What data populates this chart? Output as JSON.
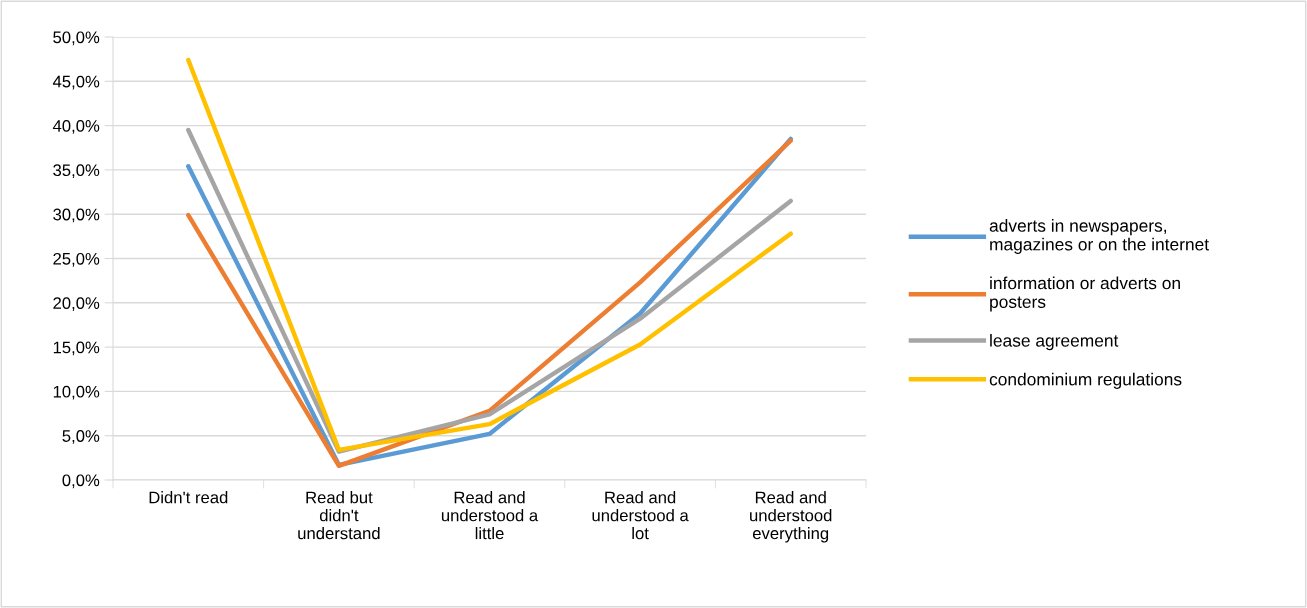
{
  "chart_data": {
    "type": "line",
    "categories": [
      "Didn't read",
      "Read but\ndidn't\nunderstand",
      "Read and\nunderstood a\nlittle",
      "Read and\nunderstood a\nlot",
      "Read and\nunderstood\neverything"
    ],
    "series": [
      {
        "name": "adverts in newspapers,\nmagazines or on the internet",
        "color": "#5b9bd5",
        "values": [
          35.4,
          1.7,
          5.2,
          18.8,
          38.5
        ]
      },
      {
        "name": "information or adverts on\nposters",
        "color": "#ed7d31",
        "values": [
          29.9,
          1.6,
          7.8,
          22.3,
          38.3
        ]
      },
      {
        "name": "lease agreement",
        "color": "#a5a5a5",
        "values": [
          39.5,
          3.2,
          7.4,
          18.2,
          31.5
        ]
      },
      {
        "name": "condominium regulations",
        "color": "#ffc000",
        "values": [
          47.4,
          3.4,
          6.3,
          15.3,
          27.8
        ]
      }
    ],
    "ylim": [
      0,
      50
    ],
    "yticks": [
      {
        "value": 0,
        "label": "0,0%"
      },
      {
        "value": 5,
        "label": "5,0%"
      },
      {
        "value": 10,
        "label": "10,0%"
      },
      {
        "value": 15,
        "label": "15,0%"
      },
      {
        "value": 20,
        "label": "20,0%"
      },
      {
        "value": 25,
        "label": "25,0%"
      },
      {
        "value": 30,
        "label": "30,0%"
      },
      {
        "value": 35,
        "label": "35,0%"
      },
      {
        "value": 40,
        "label": "40,0%"
      },
      {
        "value": 45,
        "label": "45,0%"
      },
      {
        "value": 50,
        "label": "50,0%"
      }
    ],
    "grid": "y",
    "legend": "right",
    "marker": "none",
    "line_style": "solid"
  }
}
